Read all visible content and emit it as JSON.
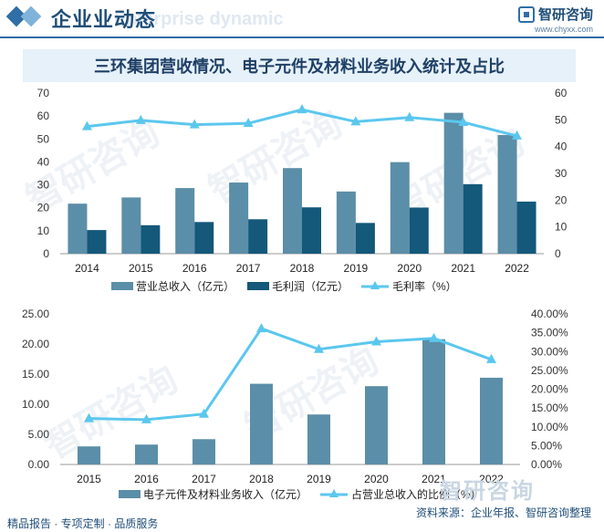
{
  "header": {
    "title": "企业业动态",
    "ghost": "Enterprise dynamic"
  },
  "brand": {
    "name": "智研咨询",
    "url": "www.chyxx.com"
  },
  "banner": {
    "title": "三环集团营收情况、电子元件及材料业务收入统计及占比"
  },
  "footer": {
    "left": "精品报告 · 专项定制 · 品质服务",
    "source": "资料来源：企业年报、智研咨询整理",
    "watermark": "智研咨询"
  },
  "watermark_text": "智研咨询",
  "colors": {
    "bar_light": "#5b8ea8",
    "bar_dark": "#14587a",
    "line": "#5bc7ee",
    "axis": "#222222"
  },
  "chart_data": [
    {
      "type": "bar",
      "categories": [
        "2014",
        "2015",
        "2016",
        "2017",
        "2018",
        "2019",
        "2020",
        "2021",
        "2022"
      ],
      "series": [
        {
          "name": "营业总收入（亿元）",
          "values": [
            21.8,
            24.5,
            28.6,
            31.0,
            37.3,
            27.1,
            39.9,
            61.4,
            51.7
          ],
          "axis": "left"
        },
        {
          "name": "毛利润（亿元）",
          "values": [
            10.3,
            12.4,
            13.8,
            15.0,
            20.2,
            13.4,
            20.1,
            30.3,
            22.7
          ],
          "axis": "left"
        },
        {
          "name": "毛利率（%）",
          "values": [
            47.5,
            49.8,
            48.2,
            48.7,
            53.8,
            49.3,
            50.9,
            49.1,
            44.0
          ],
          "axis": "right",
          "type": "line"
        }
      ],
      "yleft": {
        "ticks": [
          "0",
          "10",
          "20",
          "30",
          "40",
          "50",
          "60",
          "70"
        ],
        "range": [
          0,
          70
        ]
      },
      "yright": {
        "ticks": [
          "0",
          "10",
          "20",
          "30",
          "40",
          "50",
          "60"
        ],
        "range": [
          0,
          60
        ]
      }
    },
    {
      "type": "bar",
      "categories": [
        "2015",
        "2016",
        "2017",
        "2018",
        "2019",
        "2020",
        "2021",
        "2022"
      ],
      "series": [
        {
          "name": "电子元件及材料业务收入（亿元）",
          "values": [
            3.0,
            3.3,
            4.2,
            13.4,
            8.3,
            13.0,
            20.8,
            14.4
          ],
          "axis": "left"
        },
        {
          "name": "占营业总收入的比例（%）",
          "values": [
            12.2,
            11.9,
            13.4,
            36.1,
            30.6,
            32.6,
            33.5,
            27.9
          ],
          "axis": "right",
          "type": "line"
        }
      ],
      "yleft": {
        "ticks": [
          "0.00",
          "5.00",
          "10.00",
          "15.00",
          "20.00",
          "25.00"
        ],
        "range": [
          0,
          25
        ]
      },
      "yright": {
        "ticks": [
          "0.00%",
          "5.00%",
          "10.00%",
          "15.00%",
          "20.00%",
          "25.00%",
          "30.00%",
          "35.00%",
          "40.00%"
        ],
        "range": [
          0,
          40
        ]
      }
    }
  ]
}
